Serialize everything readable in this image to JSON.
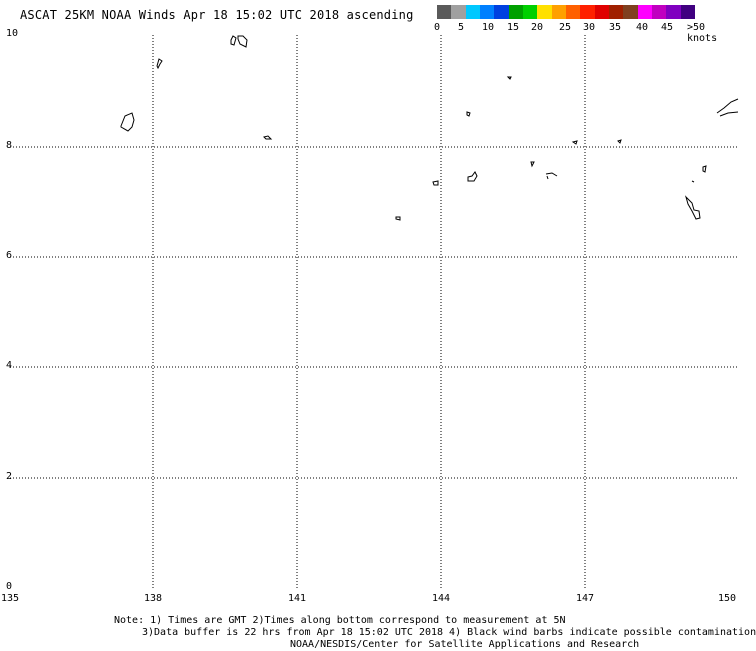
{
  "title": "ASCAT 25KM NOAA Winds Apr 18 15:02 UTC 2018 ascending",
  "legend": {
    "colors": [
      "#5a5a5a",
      "#a0a0a0",
      "#00c8ff",
      "#0080ff",
      "#0040e0",
      "#00a000",
      "#00d000",
      "#ffe000",
      "#ffa000",
      "#ff6000",
      "#ff2000",
      "#e00000",
      "#a02000",
      "#804020",
      "#ff00ff",
      "#c000c0",
      "#8000c0",
      "#400080"
    ],
    "labels": [
      "0",
      "5",
      "10",
      "15",
      "20",
      "25",
      "30",
      "35",
      "40",
      "45",
      ">50 knots"
    ]
  },
  "axes": {
    "x_ticks": [
      "135",
      "138",
      "141",
      "144",
      "147",
      "150"
    ],
    "y_ticks": [
      "0",
      "2",
      "4",
      "6",
      "8",
      "10"
    ]
  },
  "footer": {
    "line1": "Note: 1) Times are GMT 2)Times along bottom correspond to measurement at 5N",
    "line2": "3)Data buffer is 22 hrs from Apr 18 15:02 UTC 2018 4) Black wind barbs indicate possible contamination",
    "line3": "NOAA/NESDIS/Center for Satellite Applications and Research"
  }
}
